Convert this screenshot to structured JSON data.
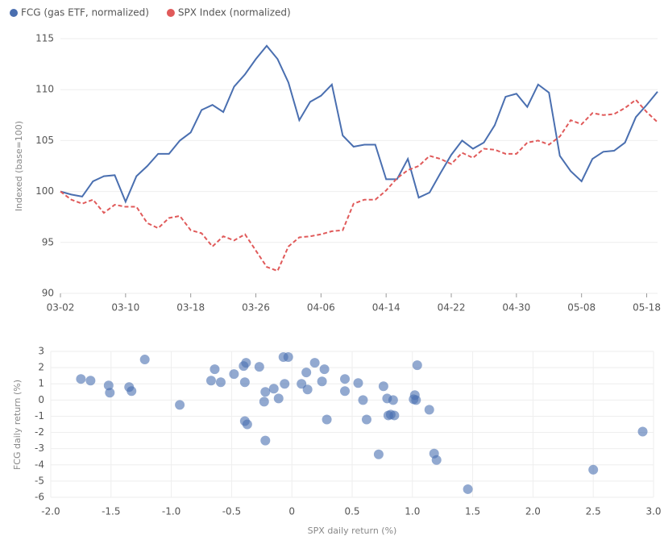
{
  "chart_data": [
    {
      "type": "line",
      "ylabel": "Indexed (base=100)",
      "categories": [
        "03-02",
        null,
        null,
        null,
        null,
        null,
        "03-10",
        null,
        null,
        null,
        null,
        null,
        "03-18",
        null,
        null,
        null,
        null,
        null,
        "03-26",
        null,
        null,
        null,
        null,
        null,
        "04-06",
        null,
        null,
        null,
        null,
        null,
        "04-14",
        null,
        null,
        null,
        null,
        null,
        "04-22",
        null,
        null,
        null,
        null,
        null,
        "04-30",
        null,
        null,
        null,
        null,
        null,
        "05-08",
        null,
        null,
        null,
        null,
        null,
        "05-18",
        null
      ],
      "series": [
        {
          "name": "FCG (gas ETF, normalized)",
          "color": "#4a6fb0",
          "line_style": "solid",
          "values": [
            100,
            99.7,
            99.5,
            101,
            101.5,
            101.6,
            99,
            101.5,
            102.5,
            103.7,
            103.7,
            105,
            105.8,
            108,
            108.5,
            107.8,
            110.3,
            111.5,
            113,
            114.3,
            113,
            110.7,
            107,
            108.8,
            109.4,
            110.5,
            105.5,
            104.4,
            104.6,
            104.6,
            101.2,
            101.2,
            103.2,
            99.4,
            99.9,
            101.8,
            103.6,
            105,
            104.2,
            104.8,
            106.5,
            109.3,
            109.6,
            108.3,
            110.5,
            109.7,
            103.5,
            102,
            101,
            103.2,
            103.9,
            104,
            104.8,
            107.3,
            108.5,
            109.8
          ]
        },
        {
          "name": "SPX Index (normalized)",
          "color": "#e05a5a",
          "line_style": "dashed",
          "values": [
            100,
            99.2,
            98.8,
            99.2,
            97.9,
            98.7,
            98.5,
            98.5,
            96.9,
            96.4,
            97.4,
            97.6,
            96.2,
            95.9,
            94.6,
            95.6,
            95.2,
            95.8,
            94.2,
            92.6,
            92.2,
            94.6,
            95.5,
            95.6,
            95.8,
            96.1,
            96.2,
            98.8,
            99.2,
            99.2,
            100.1,
            101.3,
            102.1,
            102.5,
            103.5,
            103.2,
            102.7,
            103.8,
            103.3,
            104.2,
            104.1,
            103.7,
            103.7,
            104.8,
            105,
            104.6,
            105.4,
            107,
            106.6,
            107.7,
            107.5,
            107.6,
            108.2,
            109,
            107.8,
            106.8
          ]
        }
      ],
      "ylim": [
        90,
        115
      ],
      "yticks": [
        90,
        95,
        100,
        105,
        110,
        115
      ],
      "grid": "y",
      "legend": "top-left"
    },
    {
      "type": "scatter",
      "xlabel": "SPX daily return (%)",
      "ylabel": "FCG daily return (%)",
      "color": "#4a6fb0",
      "x": [
        -1.75,
        -1.67,
        -1.52,
        -1.51,
        -1.35,
        -1.33,
        -1.22,
        -0.93,
        -0.67,
        -0.64,
        -0.59,
        -0.48,
        -0.4,
        -0.39,
        -0.38,
        -0.39,
        -0.37,
        -0.27,
        -0.23,
        -0.22,
        -0.22,
        -0.15,
        -0.11,
        -0.07,
        -0.06,
        -0.03,
        0.08,
        0.12,
        0.13,
        0.19,
        0.25,
        0.27,
        0.29,
        0.44,
        0.44,
        0.55,
        0.59,
        0.62,
        0.72,
        0.76,
        0.79,
        0.8,
        0.82,
        0.84,
        0.85,
        1.01,
        1.02,
        1.03,
        1.04,
        1.14,
        1.18,
        1.2,
        1.46,
        2.5,
        2.91
      ],
      "values": [
        1.3,
        1.2,
        0.9,
        0.45,
        0.8,
        0.55,
        2.5,
        -0.3,
        1.2,
        1.9,
        1.1,
        1.6,
        2.1,
        1.1,
        2.3,
        -1.3,
        -1.5,
        2.05,
        -0.1,
        0.5,
        -2.5,
        0.7,
        0.1,
        2.65,
        1.0,
        2.65,
        1.0,
        1.7,
        0.65,
        2.3,
        1.15,
        1.9,
        -1.2,
        1.3,
        0.55,
        1.05,
        0,
        -1.2,
        -3.35,
        0.85,
        0.1,
        -0.95,
        -0.9,
        0,
        -0.95,
        0.05,
        0.3,
        0,
        2.15,
        -0.6,
        -3.3,
        -3.7,
        -5.5,
        -4.3,
        -1.95
      ],
      "xlim": [
        -2,
        3
      ],
      "xticks": [
        {
          "value": -2,
          "label": "-2.0"
        },
        {
          "value": -1.5,
          "label": "-1.5"
        },
        {
          "value": -1,
          "label": "-1.0"
        },
        -0.5,
        0,
        0.5,
        {
          "value": 1,
          "label": "1.0"
        },
        1.5,
        {
          "value": 2,
          "label": "2.0"
        },
        2.5,
        {
          "value": 3,
          "label": "3.0"
        }
      ],
      "ylim": [
        -6,
        3
      ],
      "yticks": [
        -6,
        -5,
        -4,
        -3,
        -2,
        -1,
        0,
        1,
        2,
        3
      ],
      "grid": "both"
    }
  ]
}
